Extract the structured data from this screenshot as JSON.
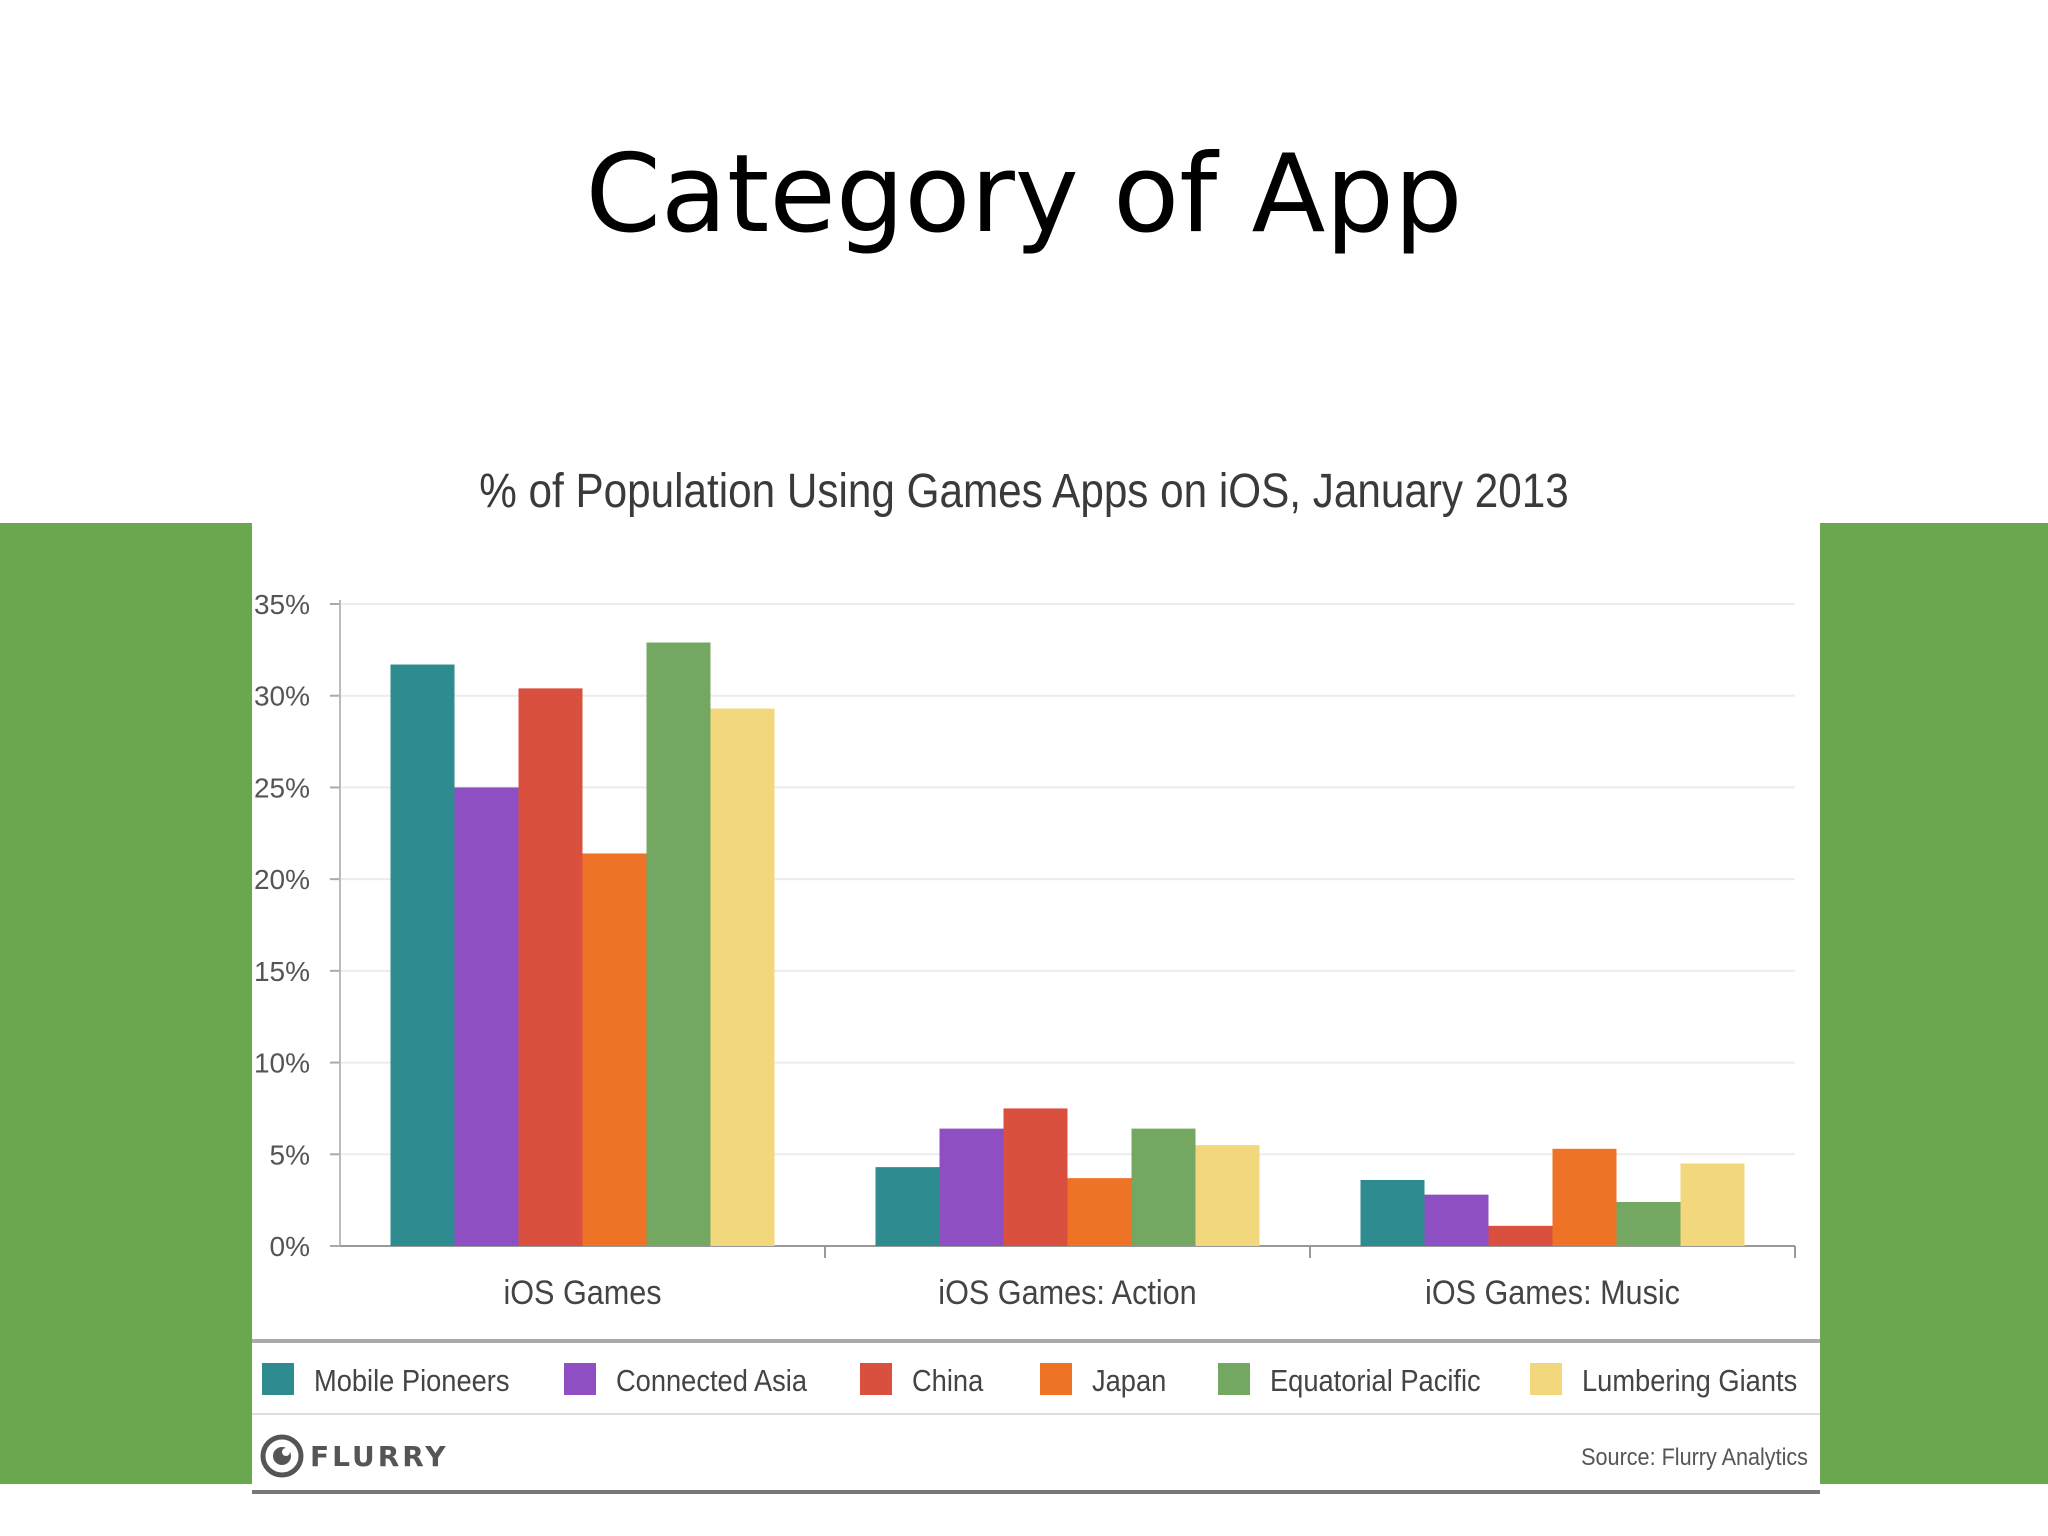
{
  "slide": {
    "title": "Category of App"
  },
  "chart_data": {
    "type": "bar",
    "title": "% of Population Using Games Apps on iOS, January 2013",
    "xlabel": "",
    "ylabel": "",
    "ylim": [
      0,
      35
    ],
    "ytick_labels": [
      "0%",
      "5%",
      "10%",
      "15%",
      "20%",
      "25%",
      "30%",
      "35%"
    ],
    "grid": true,
    "legend_position": "bottom",
    "categories": [
      "iOS Games",
      "iOS Games:  Action",
      "iOS Games:  Music"
    ],
    "series": [
      {
        "name": "Mobile Pioneers",
        "color": "#2e8b8f",
        "values": [
          31.7,
          4.3,
          3.6
        ]
      },
      {
        "name": "Connected Asia",
        "color": "#8e4fc2",
        "values": [
          25.0,
          6.4,
          2.8
        ]
      },
      {
        "name": "China",
        "color": "#d9503f",
        "values": [
          30.4,
          7.5,
          1.1
        ]
      },
      {
        "name": "Japan",
        "color": "#ee7326",
        "values": [
          21.4,
          3.7,
          5.3
        ]
      },
      {
        "name": "Equatorial Pacific",
        "color": "#74a862",
        "values": [
          32.9,
          6.4,
          2.4
        ]
      },
      {
        "name": "Lumbering Giants",
        "color": "#f3d77d",
        "values": [
          29.3,
          5.5,
          4.5
        ]
      }
    ]
  },
  "footer": {
    "brand": "FLURRY",
    "source": "Source: Flurry Analytics"
  }
}
